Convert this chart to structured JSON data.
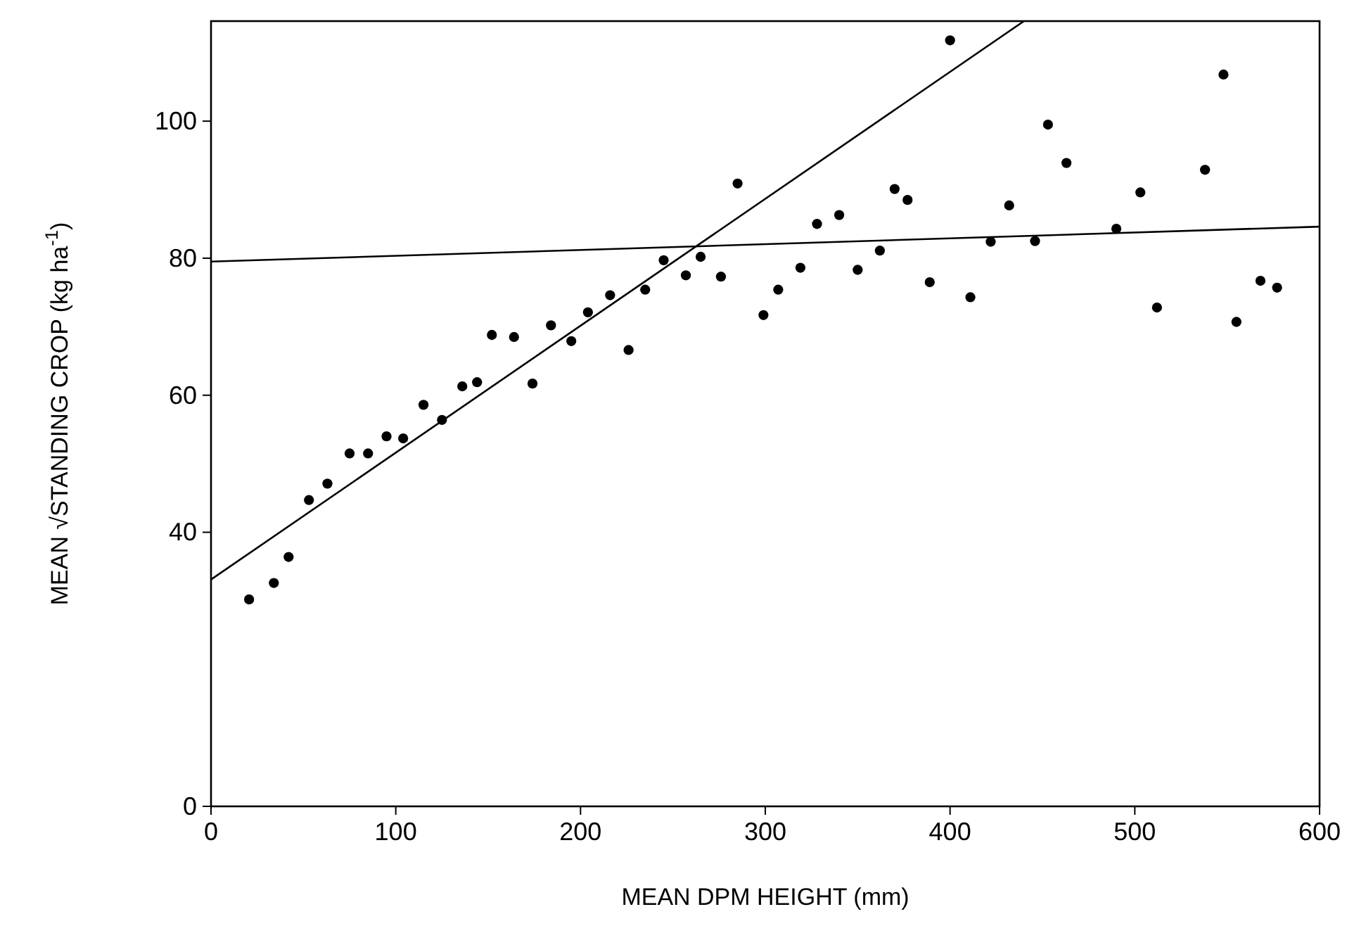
{
  "chart_data": {
    "type": "scatter",
    "xlabel": "MEAN DPM HEIGHT (mm)",
    "ylabel": "MEAN √STANDING CROP (kg ha$^{-1}$)",
    "xlim": [
      0,
      600
    ],
    "xticks": [
      0,
      100,
      200,
      300,
      400,
      500,
      600
    ],
    "ylim": [
      0,
      114.6
    ],
    "yticks": [
      0,
      40,
      60,
      80,
      100
    ],
    "grid": false,
    "marker": "circle",
    "series": [
      {
        "color": "#000000",
        "x": [
          20.6,
          34,
          42,
          53,
          63,
          75,
          85,
          95,
          104,
          115,
          125,
          136,
          144,
          152,
          164,
          174,
          184,
          195,
          204,
          216,
          226,
          235,
          245,
          257,
          265,
          276,
          285,
          299,
          307,
          319,
          328,
          340,
          350,
          362,
          370,
          377,
          389,
          400,
          411,
          422,
          432,
          446,
          453,
          463,
          490,
          503,
          512,
          538,
          548,
          555,
          568,
          577
        ],
        "values": [
          30.2,
          32.6,
          36.4,
          44.7,
          47.1,
          51.5,
          51.5,
          54.0,
          53.7,
          58.6,
          56.4,
          61.3,
          61.9,
          68.8,
          68.5,
          61.7,
          70.2,
          67.9,
          72.1,
          74.6,
          66.6,
          75.4,
          79.7,
          77.5,
          80.2,
          77.3,
          90.9,
          71.7,
          75.4,
          78.6,
          85.0,
          86.3,
          78.3,
          81.1,
          90.1,
          88.5,
          76.5,
          111.8,
          74.3,
          82.4,
          87.7,
          82.5,
          99.5,
          93.9,
          84.3,
          89.6,
          72.8,
          92.9,
          106.8,
          70.7,
          76.7,
          75.7
        ]
      },
      {
        "type": "line",
        "color": "#000000",
        "line_style": "solid",
        "marker": "none",
        "x": [
          0,
          440
        ],
        "values": [
          33.1,
          114.6
        ]
      },
      {
        "type": "line",
        "color": "#000000",
        "line_style": "solid",
        "marker": "none",
        "x": [
          0,
          600
        ],
        "values": [
          79.5,
          84.6
        ]
      }
    ]
  }
}
